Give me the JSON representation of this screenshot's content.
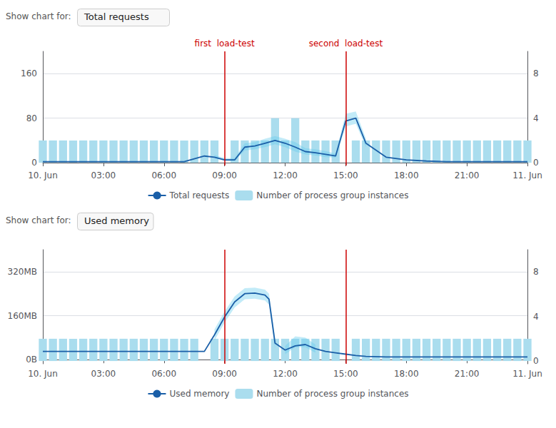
{
  "chart_data": [
    {
      "type": "line",
      "annotations": [
        "Show chart for:",
        "Total requests"
      ],
      "xlim": [
        0,
        24
      ],
      "xticks": [
        {
          "value": 0,
          "label": "10. Jun"
        },
        {
          "value": 3,
          "label": "03:00"
        },
        {
          "value": 6,
          "label": "06:00"
        },
        {
          "value": 9,
          "label": "09:00"
        },
        {
          "value": 12,
          "label": "12:00"
        },
        {
          "value": 15,
          "label": "15:00"
        },
        {
          "value": 18,
          "label": "18:00"
        },
        {
          "value": 21,
          "label": "21:00"
        },
        {
          "value": 24,
          "label": "11. Jun"
        }
      ],
      "ylim": [
        -5,
        200
      ],
      "yticks": [
        0,
        80,
        160
      ],
      "y2lim": [
        -0.25,
        10
      ],
      "y2ticks": [
        0,
        4,
        8
      ],
      "grid": true,
      "legend": "bottom",
      "vlines": [
        {
          "x": 9,
          "label": "first  load-test",
          "color": "#cc0000"
        },
        {
          "x": 15,
          "label": "second  load-test",
          "color": "#cc0000"
        }
      ],
      "series": [
        {
          "name": "Total requests",
          "type": "line",
          "color": "#1a5fa8",
          "x": [
            0,
            1,
            2,
            3,
            4,
            5,
            6,
            7,
            8,
            8.5,
            9,
            9.5,
            10,
            10.5,
            11,
            11.5,
            12,
            12.5,
            13,
            13.5,
            14,
            14.5,
            15,
            15.5,
            16,
            17,
            18,
            19,
            20,
            21,
            22,
            23,
            24
          ],
          "values": [
            2,
            2,
            2,
            2,
            2,
            2,
            2,
            2,
            12,
            10,
            5,
            5,
            28,
            30,
            35,
            40,
            35,
            28,
            20,
            18,
            15,
            12,
            75,
            80,
            35,
            10,
            5,
            3,
            2,
            2,
            2,
            2,
            2
          ]
        },
        {
          "name": "Number of process group instances",
          "type": "bar",
          "axis": "y2",
          "color": "#aaddee",
          "x": [
            0.0,
            0.5,
            1.0,
            1.5,
            2.0,
            2.5,
            3.0,
            3.5,
            4.0,
            4.5,
            5.0,
            5.5,
            6.0,
            6.5,
            7.0,
            7.5,
            8.0,
            8.5,
            9.5,
            10.0,
            10.5,
            11.0,
            11.5,
            12.0,
            12.5,
            13.0,
            13.5,
            14.0,
            14.5,
            15.5,
            16.0,
            16.5,
            17.0,
            17.5,
            18.0,
            18.5,
            19.0,
            19.5,
            20.0,
            20.5,
            21.0,
            21.5,
            22.0,
            22.5,
            23.0,
            23.5,
            24.0
          ],
          "values": [
            2,
            2,
            2,
            2,
            2,
            2,
            2,
            2,
            2,
            2,
            2,
            2,
            2,
            2,
            2,
            2,
            2,
            2,
            2,
            2,
            2,
            2,
            4,
            2,
            4,
            2,
            2,
            2,
            2,
            2,
            2,
            2,
            2,
            2,
            2,
            2,
            2,
            2,
            2,
            2,
            2,
            2,
            2,
            2,
            2,
            2,
            2
          ]
        },
        {
          "type": "band",
          "color": "#66ccee",
          "x": [
            8.5,
            9,
            9.5,
            10,
            10.5,
            11,
            11.5,
            12,
            12.5,
            13,
            13.5,
            14,
            14.5,
            15,
            15.5,
            16
          ],
          "lower": [
            8,
            3,
            3,
            22,
            24,
            28,
            33,
            28,
            20,
            15,
            13,
            10,
            9,
            65,
            70,
            28
          ],
          "upper": [
            14,
            8,
            8,
            35,
            37,
            43,
            48,
            43,
            37,
            26,
            24,
            21,
            16,
            88,
            92,
            43
          ]
        }
      ]
    },
    {
      "type": "line",
      "annotations": [
        "Show chart for:",
        "Used memory"
      ],
      "xlim": [
        0,
        24
      ],
      "xticks": [
        {
          "value": 0,
          "label": "10. Jun"
        },
        {
          "value": 3,
          "label": "03:00"
        },
        {
          "value": 6,
          "label": "06:00"
        },
        {
          "value": 9,
          "label": "09:00"
        },
        {
          "value": 12,
          "label": "12:00"
        },
        {
          "value": 15,
          "label": "15:00"
        },
        {
          "value": 18,
          "label": "18:00"
        },
        {
          "value": 21,
          "label": "21:00"
        },
        {
          "value": 24,
          "label": "11. Jun"
        }
      ],
      "ylim": [
        -15,
        400
      ],
      "yticks": [
        {
          "value": 0,
          "label": "0B"
        },
        {
          "value": 160,
          "label": "160MB"
        },
        {
          "value": 320,
          "label": "320MB"
        }
      ],
      "y2lim": [
        -0.25,
        10
      ],
      "y2ticks": [
        0,
        4,
        8
      ],
      "grid": true,
      "legend": "bottom",
      "vlines": [
        {
          "x": 9,
          "color": "#cc0000"
        },
        {
          "x": 15,
          "color": "#cc0000"
        }
      ],
      "series": [
        {
          "name": "Used memory",
          "type": "line",
          "color": "#1a5fa8",
          "x": [
            0,
            1,
            2,
            3,
            4,
            5,
            6,
            7,
            7.5,
            8,
            8.5,
            9,
            9.5,
            10,
            10.5,
            11,
            11.2,
            11.5,
            12,
            12.5,
            13,
            13.5,
            14,
            14.5,
            15,
            15.5,
            16,
            17,
            18,
            19,
            20,
            21,
            22,
            23,
            24
          ],
          "values": [
            30,
            30,
            30,
            30,
            30,
            30,
            30,
            30,
            30,
            30,
            90,
            155,
            210,
            240,
            242,
            235,
            220,
            60,
            35,
            50,
            55,
            40,
            30,
            25,
            20,
            15,
            12,
            10,
            10,
            10,
            10,
            10,
            10,
            10,
            10
          ]
        },
        {
          "name": "Number of process group instances",
          "type": "bar",
          "axis": "y2",
          "color": "#aaddee",
          "x": [
            0.0,
            0.5,
            1.0,
            1.5,
            2.0,
            2.5,
            3.0,
            3.5,
            4.0,
            4.5,
            5.0,
            5.5,
            6.0,
            6.5,
            7.0,
            7.5,
            8.5,
            9.0,
            9.5,
            10.0,
            10.5,
            11.0,
            11.5,
            12.0,
            12.5,
            13.0,
            13.5,
            14.0,
            14.5,
            15.5,
            16.0,
            16.5,
            17.0,
            17.5,
            18.0,
            18.5,
            19.0,
            19.5,
            20.0,
            20.5,
            21.0,
            21.5,
            22.0,
            22.5,
            23.0,
            23.5,
            24.0
          ],
          "values": [
            2,
            2,
            2,
            2,
            2,
            2,
            2,
            2,
            2,
            2,
            2,
            2,
            2,
            2,
            2,
            2,
            2,
            2,
            2,
            2,
            2,
            2,
            2,
            2,
            2,
            2,
            2,
            2,
            2,
            2,
            2,
            2,
            2,
            2,
            2,
            2,
            2,
            2,
            2,
            2,
            2,
            2,
            2,
            2,
            2,
            2,
            2
          ]
        },
        {
          "type": "band",
          "color": "#66ccee",
          "x": [
            8.5,
            9.0,
            9.5,
            10.0,
            10.5,
            11.0,
            11.2,
            11.5
          ],
          "lower": [
            70,
            135,
            190,
            220,
            222,
            215,
            200,
            40
          ],
          "upper": [
            110,
            175,
            230,
            260,
            262,
            255,
            240,
            80
          ]
        },
        {
          "type": "band",
          "color": "#66ccee",
          "x": [
            12.0,
            12.5,
            13.0,
            13.5
          ],
          "lower": [
            20,
            45,
            45,
            25
          ],
          "upper": [
            50,
            85,
            80,
            55
          ]
        }
      ]
    }
  ]
}
